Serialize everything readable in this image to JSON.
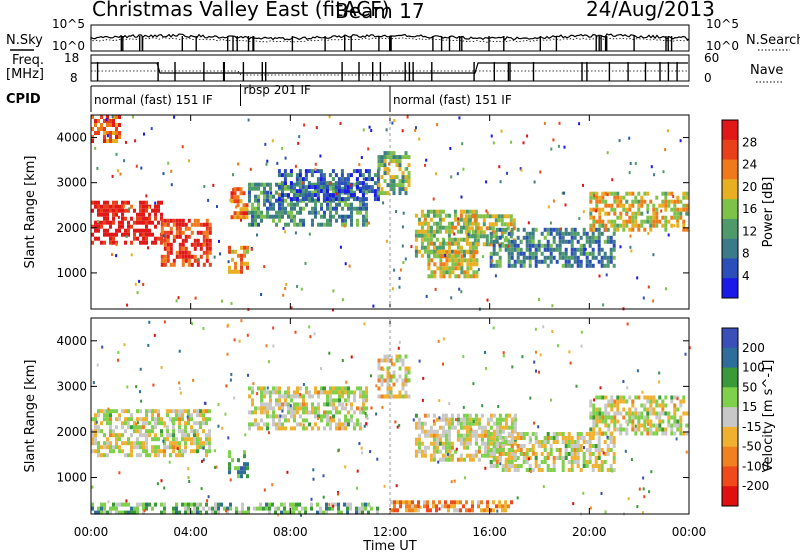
{
  "header": {
    "title": "Christmas Valley East (fitACF)",
    "beam": "Beam 17",
    "date": "24/Aug/2013"
  },
  "side_labels": {
    "nsky": "N.Sky",
    "freq": "Freq.",
    "mhz": "[MHz]",
    "cpid": "CPID",
    "nsearch": "N.Search",
    "nave": "Nave"
  },
  "strip_ticks": {
    "nsky_top": "10^5",
    "nsky_bottom": "10^0",
    "freq_top": "18",
    "freq_bottom": "8",
    "nsearch_top": "10^5",
    "nsearch_bottom": "10^0",
    "nave_top": "60",
    "nave_bottom": "0"
  },
  "cpid_modes": [
    {
      "label": "normal (fast) 151 IF",
      "start": 0.0,
      "end": 6.0
    },
    {
      "label": "rbsp 201 IF",
      "start": 6.0,
      "end": 12.0
    },
    {
      "label": "normal (fast) 151 IF",
      "start": 12.0,
      "end": 24.0
    }
  ],
  "axes": {
    "xlabel": "Time UT",
    "ylabel": "Slant Range [km]",
    "xticks": [
      "00:00",
      "04:00",
      "08:00",
      "12:00",
      "16:00",
      "20:00",
      "00:00"
    ],
    "yticks": [
      "1000",
      "2000",
      "3000",
      "4000"
    ],
    "xlim": [
      0,
      24
    ],
    "ylim": [
      200,
      4500
    ]
  },
  "colorbars": {
    "power": {
      "label": "Power [dB]",
      "ticks": [
        "4",
        "8",
        "12",
        "16",
        "20",
        "24",
        "28"
      ],
      "colors": [
        "#1a1ae6",
        "#2b4fb8",
        "#3c7a8a",
        "#4f9a6a",
        "#7fc24a",
        "#e8b020",
        "#f07a1a",
        "#e8401a",
        "#e01818"
      ]
    },
    "velocity": {
      "label": "Velocity [m s^-1]",
      "ticks": [
        "200",
        "100",
        "50",
        "15",
        "-15",
        "-50",
        "-100",
        "-200"
      ],
      "colors": [
        "#3a4fb8",
        "#2f6e9a",
        "#3a9a3a",
        "#7fd04a",
        "#c8c8c8",
        "#f0b030",
        "#f08020",
        "#f04a1a",
        "#e01010"
      ]
    }
  },
  "chart_data": [
    {
      "type": "heatmap",
      "panel": "power",
      "xlabel": "Time UT",
      "ylabel": "Slant Range [km]",
      "xlim": [
        0,
        24
      ],
      "ylim": [
        200,
        4500
      ],
      "colorbar_label": "Power [dB]",
      "patches": [
        {
          "x": [
            0.0,
            2.8
          ],
          "y": [
            1700,
            2600
          ],
          "level": 0.95
        },
        {
          "x": [
            2.8,
            4.8
          ],
          "y": [
            1200,
            2200
          ],
          "level": 0.85
        },
        {
          "x": [
            5.5,
            6.3
          ],
          "y": [
            1000,
            1600
          ],
          "level": 0.7
        },
        {
          "x": [
            5.6,
            6.3
          ],
          "y": [
            2200,
            2900
          ],
          "level": 0.75
        },
        {
          "x": [
            6.3,
            11.0
          ],
          "y": [
            2100,
            3000
          ],
          "level": 0.35
        },
        {
          "x": [
            7.5,
            11.5
          ],
          "y": [
            2600,
            3300
          ],
          "level": 0.2
        },
        {
          "x": [
            11.5,
            12.8
          ],
          "y": [
            2800,
            3700
          ],
          "level": 0.45
        },
        {
          "x": [
            13.0,
            15.5
          ],
          "y": [
            1400,
            2400
          ],
          "level": 0.5
        },
        {
          "x": [
            13.5,
            15.5
          ],
          "y": [
            900,
            1500
          ],
          "level": 0.6
        },
        {
          "x": [
            15.0,
            17.0
          ],
          "y": [
            1600,
            2300
          ],
          "level": 0.55
        },
        {
          "x": [
            16.0,
            21.0
          ],
          "y": [
            1200,
            2000
          ],
          "level": 0.3
        },
        {
          "x": [
            20.0,
            23.9
          ],
          "y": [
            2000,
            2800
          ],
          "level": 0.6
        },
        {
          "x": [
            0.0,
            1.2
          ],
          "y": [
            3900,
            4500
          ],
          "level": 0.8
        }
      ]
    },
    {
      "type": "heatmap",
      "panel": "velocity",
      "xlabel": "Time UT",
      "ylabel": "Slant Range [km]",
      "xlim": [
        0,
        24
      ],
      "ylim": [
        200,
        4500
      ],
      "colorbar_label": "Velocity [m s^-1]",
      "patches": [
        {
          "x": [
            0.0,
            4.8
          ],
          "y": [
            1500,
            2500
          ],
          "level": 0.5
        },
        {
          "x": [
            5.5,
            6.3
          ],
          "y": [
            1000,
            1600
          ],
          "level": 0.25
        },
        {
          "x": [
            6.3,
            11.0
          ],
          "y": [
            2100,
            3000
          ],
          "level": 0.5
        },
        {
          "x": [
            11.5,
            12.8
          ],
          "y": [
            2800,
            3700
          ],
          "level": 0.55
        },
        {
          "x": [
            12.0,
            17.0
          ],
          "y": [
            250,
            500
          ],
          "level": 0.7
        },
        {
          "x": [
            13.0,
            17.0
          ],
          "y": [
            1400,
            2400
          ],
          "level": 0.5
        },
        {
          "x": [
            16.0,
            21.0
          ],
          "y": [
            1200,
            2000
          ],
          "level": 0.5
        },
        {
          "x": [
            20.0,
            23.9
          ],
          "y": [
            2000,
            2800
          ],
          "level": 0.5
        },
        {
          "x": [
            0.0,
            11.5
          ],
          "y": [
            250,
            450
          ],
          "level": 0.35
        }
      ]
    }
  ]
}
